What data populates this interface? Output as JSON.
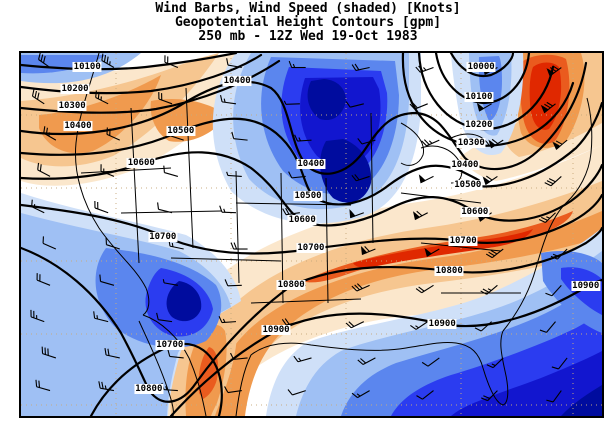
{
  "title": {
    "line1": "Wind Barbs, Wind Speed (shaded) [Knots]",
    "line2": "Geopotential Height Contours [gpm]",
    "line3": "250 mb - 12Z Wed 19-Oct 1983"
  },
  "palette": {
    "speed_low_to_high_blue": [
      "#cfe0f8",
      "#9fc0f4",
      "#5b86ee",
      "#2b3cf0",
      "#1216cf",
      "#000c9e"
    ],
    "speed_low_to_high_orange": [
      "#fbe7cc",
      "#f6c690",
      "#f09a4e",
      "#ea5b1e",
      "#e02800"
    ],
    "contour_line": "#000000",
    "grid_dots": "#c9ab7e",
    "label_bg": "#ffffff"
  },
  "chart_data": {
    "type": "heatmap",
    "title": "Wind Barbs, Wind Speed (shaded) [Knots]",
    "subtitle": "Geopotential Height Contours [gpm]",
    "level_time": "250 mb - 12Z Wed 19-Oct 1983",
    "field": "250 mb wind speed (knots, color shaded; blue = lighter winds, orange/red = jet streaks) with geopotential height contours (gpm) and wind barbs over the United States",
    "contour_interval_gpm": 100,
    "contour_values_gpm": [
      10000,
      10100,
      10200,
      10300,
      10400,
      10500,
      10600,
      10700,
      10800,
      10900
    ],
    "contour_labels": [
      {
        "v": "10100",
        "x": 11.4,
        "y": 3.9
      },
      {
        "v": "10200",
        "x": 9.3,
        "y": 9.9
      },
      {
        "v": "10300",
        "x": 8.8,
        "y": 14.6
      },
      {
        "v": "10400",
        "x": 9.8,
        "y": 20.1
      },
      {
        "v": "10500",
        "x": 27.5,
        "y": 21.5
      },
      {
        "v": "10600",
        "x": 20.7,
        "y": 30.3
      },
      {
        "v": "10400",
        "x": 37.2,
        "y": 7.7
      },
      {
        "v": "10400",
        "x": 49.9,
        "y": 30.6
      },
      {
        "v": "10000",
        "x": 79.2,
        "y": 3.9
      },
      {
        "v": "10100",
        "x": 78.8,
        "y": 12.1
      },
      {
        "v": "10200",
        "x": 78.8,
        "y": 19.8
      },
      {
        "v": "10300",
        "x": 77.5,
        "y": 24.8
      },
      {
        "v": "10400",
        "x": 76.4,
        "y": 30.9
      },
      {
        "v": "10500",
        "x": 49.4,
        "y": 39.4
      },
      {
        "v": "10600",
        "x": 48.4,
        "y": 46.0
      },
      {
        "v": "10700",
        "x": 49.9,
        "y": 53.7
      },
      {
        "v": "10800",
        "x": 46.5,
        "y": 63.9
      },
      {
        "v": "10500",
        "x": 76.9,
        "y": 36.4
      },
      {
        "v": "10600",
        "x": 78.1,
        "y": 43.8
      },
      {
        "v": "10700",
        "x": 76.1,
        "y": 51.8
      },
      {
        "v": "10800",
        "x": 73.7,
        "y": 60.1
      },
      {
        "v": "10900",
        "x": 97.2,
        "y": 64.2
      },
      {
        "v": "10700",
        "x": 24.4,
        "y": 50.7
      },
      {
        "v": "10700",
        "x": 25.6,
        "y": 80.4
      },
      {
        "v": "10800",
        "x": 22.0,
        "y": 92.6
      },
      {
        "v": "10900",
        "x": 43.9,
        "y": 76.3
      },
      {
        "v": "10900",
        "x": 72.5,
        "y": 74.7
      }
    ],
    "wind_barbs": [
      [
        5,
        4,
        305,
        0,
        3,
        0
      ],
      [
        16,
        4,
        300,
        0,
        3,
        1
      ],
      [
        27,
        4,
        292,
        0,
        2,
        0
      ],
      [
        38,
        4,
        280,
        0,
        1,
        0
      ],
      [
        49,
        4,
        270,
        0,
        1,
        1
      ],
      [
        60,
        4,
        258,
        0,
        2,
        0
      ],
      [
        71,
        4,
        250,
        0,
        2,
        1
      ],
      [
        82,
        4,
        242,
        1,
        2,
        0
      ],
      [
        93,
        4,
        234,
        1,
        3,
        0
      ],
      [
        4,
        14,
        303,
        0,
        3,
        0
      ],
      [
        15,
        14,
        297,
        0,
        2,
        1
      ],
      [
        26,
        14,
        290,
        0,
        2,
        0
      ],
      [
        37,
        14,
        278,
        0,
        1,
        1
      ],
      [
        48,
        14,
        268,
        0,
        0,
        1
      ],
      [
        59,
        14,
        256,
        0,
        1,
        0
      ],
      [
        70,
        14,
        248,
        0,
        2,
        0
      ],
      [
        81,
        14,
        240,
        1,
        1,
        0
      ],
      [
        92,
        14,
        232,
        1,
        3,
        0
      ],
      [
        6,
        24,
        300,
        0,
        2,
        1
      ],
      [
        17,
        24,
        294,
        0,
        2,
        0
      ],
      [
        28,
        24,
        288,
        0,
        1,
        0
      ],
      [
        39,
        24,
        276,
        0,
        1,
        0
      ],
      [
        50,
        24,
        266,
        0,
        1,
        1
      ],
      [
        61,
        24,
        254,
        0,
        1,
        0
      ],
      [
        72,
        24,
        246,
        0,
        2,
        1
      ],
      [
        83,
        24,
        238,
        1,
        2,
        0
      ],
      [
        94,
        24,
        230,
        1,
        2,
        0
      ],
      [
        5,
        34,
        298,
        0,
        2,
        0
      ],
      [
        16,
        34,
        292,
        0,
        1,
        1
      ],
      [
        27,
        34,
        286,
        0,
        1,
        0
      ],
      [
        38,
        34,
        274,
        0,
        0,
        1
      ],
      [
        49,
        34,
        264,
        0,
        1,
        0
      ],
      [
        60,
        34,
        252,
        0,
        2,
        0
      ],
      [
        71,
        34,
        244,
        1,
        1,
        0
      ],
      [
        82,
        34,
        236,
        1,
        2,
        0
      ],
      [
        93,
        34,
        228,
        0,
        3,
        0
      ],
      [
        4,
        44,
        296,
        0,
        1,
        1
      ],
      [
        15,
        44,
        290,
        0,
        2,
        0
      ],
      [
        26,
        44,
        284,
        0,
        1,
        0
      ],
      [
        37,
        44,
        272,
        0,
        1,
        1
      ],
      [
        48,
        44,
        262,
        0,
        2,
        0
      ],
      [
        59,
        44,
        250,
        1,
        1,
        0
      ],
      [
        70,
        44,
        242,
        1,
        2,
        0
      ],
      [
        81,
        44,
        234,
        1,
        2,
        0
      ],
      [
        92,
        44,
        226,
        0,
        2,
        1
      ],
      [
        6,
        54,
        294,
        0,
        1,
        0
      ],
      [
        17,
        54,
        288,
        0,
        1,
        0
      ],
      [
        28,
        54,
        282,
        0,
        1,
        1
      ],
      [
        39,
        54,
        270,
        0,
        2,
        0
      ],
      [
        50,
        54,
        260,
        1,
        1,
        0
      ],
      [
        61,
        54,
        248,
        1,
        2,
        0
      ],
      [
        72,
        54,
        240,
        1,
        1,
        0
      ],
      [
        83,
        54,
        232,
        0,
        3,
        0
      ],
      [
        94,
        54,
        224,
        0,
        2,
        0
      ],
      [
        5,
        64,
        292,
        0,
        2,
        0
      ],
      [
        16,
        64,
        286,
        0,
        1,
        0
      ],
      [
        27,
        64,
        280,
        0,
        0,
        1
      ],
      [
        38,
        64,
        268,
        0,
        1,
        0
      ],
      [
        49,
        64,
        258,
        0,
        2,
        1
      ],
      [
        60,
        64,
        246,
        0,
        3,
        0
      ],
      [
        71,
        64,
        238,
        0,
        2,
        0
      ],
      [
        82,
        64,
        230,
        0,
        2,
        1
      ],
      [
        93,
        64,
        222,
        0,
        1,
        0
      ],
      [
        4,
        74,
        290,
        0,
        2,
        1
      ],
      [
        15,
        74,
        284,
        0,
        1,
        1
      ],
      [
        26,
        74,
        278,
        0,
        1,
        0
      ],
      [
        37,
        74,
        266,
        0,
        1,
        1
      ],
      [
        48,
        74,
        256,
        0,
        2,
        0
      ],
      [
        59,
        74,
        244,
        0,
        2,
        0
      ],
      [
        70,
        74,
        236,
        0,
        1,
        1
      ],
      [
        81,
        74,
        228,
        0,
        1,
        0
      ],
      [
        92,
        74,
        220,
        0,
        1,
        0
      ],
      [
        6,
        84,
        288,
        0,
        3,
        0
      ],
      [
        17,
        84,
        282,
        0,
        2,
        0
      ],
      [
        28,
        84,
        276,
        0,
        1,
        0
      ],
      [
        39,
        84,
        264,
        0,
        1,
        0
      ],
      [
        50,
        84,
        254,
        0,
        1,
        1
      ],
      [
        61,
        84,
        242,
        0,
        2,
        0
      ],
      [
        72,
        84,
        234,
        0,
        1,
        0
      ],
      [
        83,
        84,
        226,
        0,
        1,
        1
      ],
      [
        94,
        84,
        218,
        0,
        1,
        0
      ],
      [
        5,
        93,
        286,
        0,
        2,
        0
      ],
      [
        16,
        93,
        280,
        0,
        2,
        1
      ],
      [
        27,
        93,
        274,
        0,
        1,
        1
      ],
      [
        38,
        93,
        262,
        0,
        1,
        0
      ],
      [
        49,
        93,
        252,
        0,
        1,
        0
      ],
      [
        60,
        93,
        240,
        0,
        1,
        1
      ],
      [
        71,
        93,
        232,
        0,
        1,
        0
      ],
      [
        82,
        93,
        224,
        0,
        2,
        0
      ],
      [
        93,
        93,
        216,
        0,
        1,
        0
      ]
    ],
    "legend_position": "none",
    "grid": "dotted lat/lon lines"
  }
}
